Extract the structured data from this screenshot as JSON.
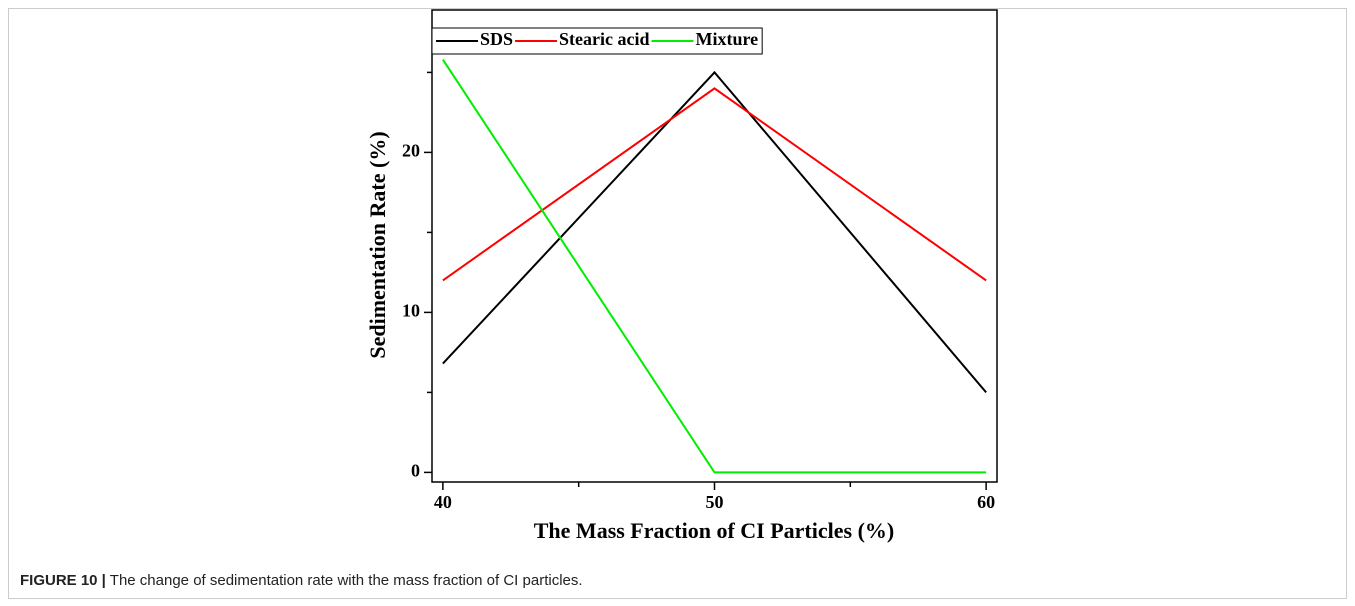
{
  "chart_data": {
    "type": "line",
    "x_label": "The Mass Fraction of CI Particles (%)",
    "y_label": "Sedimentation Rate (%)",
    "x": [
      40,
      50,
      60
    ],
    "series": [
      {
        "name": "SDS",
        "color": "#000000",
        "values": [
          6.8,
          25,
          5
        ]
      },
      {
        "name": "Stearic acid",
        "color": "#ff0000",
        "values": [
          12,
          24,
          12
        ]
      },
      {
        "name": "Mixture",
        "color": "#00ee00",
        "values": [
          25.8,
          0,
          0
        ]
      }
    ],
    "xlim": [
      39.6,
      60.4
    ],
    "xticks": [
      40,
      50,
      60
    ],
    "xminor": [
      45,
      55
    ],
    "ylim": [
      -0.6,
      28.9
    ],
    "yticks": [
      0,
      10,
      20
    ],
    "yminor": [
      5,
      15,
      25
    ],
    "legend": "top-left"
  },
  "caption": {
    "label": "FIGURE 10 |",
    "text": "The change of sedimentation rate with the mass fraction of CI particles."
  }
}
